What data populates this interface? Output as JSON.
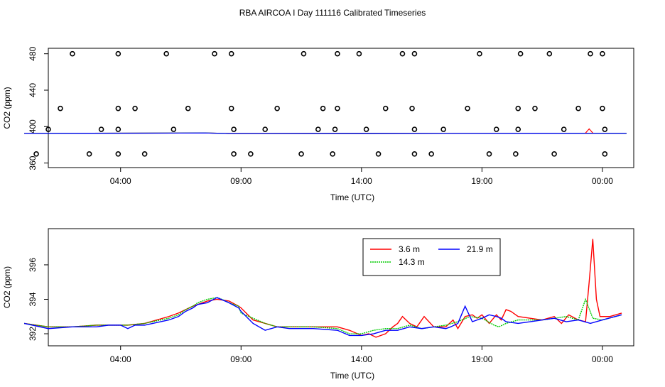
{
  "title": "RBA AIRCOA I  Day 111116  Calibrated Timeseries",
  "chart_data": [
    {
      "type": "scatter",
      "name": "top",
      "xlabel": "Time (UTC)",
      "ylabel": "CO2 (ppm)",
      "xlim": [
        0.0,
        24.3
      ],
      "ylim": [
        355,
        486
      ],
      "xticks": [
        3,
        8,
        13,
        18,
        23
      ],
      "xtick_labels": [
        "04:00",
        "09:00",
        "14:00",
        "19:00",
        "00:00"
      ],
      "yticks": [
        360,
        400,
        440,
        480
      ],
      "ytick_labels": [
        "360",
        "400",
        "440",
        "480"
      ],
      "points": [
        {
          "x": 2.9,
          "y": 480
        },
        {
          "x": 4.9,
          "y": 480
        },
        {
          "x": 7.6,
          "y": 480
        },
        {
          "x": 10.6,
          "y": 480
        },
        {
          "x": 12.9,
          "y": 480
        },
        {
          "x": 14.7,
          "y": 480
        },
        {
          "x": 17.9,
          "y": 480
        },
        {
          "x": 22.5,
          "y": 480
        },
        {
          "x": 1.0,
          "y": 480
        },
        {
          "x": 6.9,
          "y": 480
        },
        {
          "x": 12.0,
          "y": 480
        },
        {
          "x": 15.2,
          "y": 480
        },
        {
          "x": 19.6,
          "y": 480
        },
        {
          "x": 20.8,
          "y": 480
        },
        {
          "x": 23.0,
          "y": 480
        },
        {
          "x": 0.5,
          "y": 420
        },
        {
          "x": 2.9,
          "y": 420
        },
        {
          "x": 3.6,
          "y": 420
        },
        {
          "x": 5.8,
          "y": 420
        },
        {
          "x": 7.6,
          "y": 420
        },
        {
          "x": 9.5,
          "y": 420
        },
        {
          "x": 11.4,
          "y": 420
        },
        {
          "x": 12.0,
          "y": 420
        },
        {
          "x": 14.0,
          "y": 420
        },
        {
          "x": 15.1,
          "y": 420
        },
        {
          "x": 17.4,
          "y": 420
        },
        {
          "x": 19.5,
          "y": 420
        },
        {
          "x": 20.2,
          "y": 420
        },
        {
          "x": 22.0,
          "y": 420
        },
        {
          "x": 23.0,
          "y": 420
        },
        {
          "x": 0.0,
          "y": 397
        },
        {
          "x": 2.2,
          "y": 397
        },
        {
          "x": 2.9,
          "y": 397
        },
        {
          "x": 5.2,
          "y": 397
        },
        {
          "x": 7.7,
          "y": 397
        },
        {
          "x": 9.0,
          "y": 397
        },
        {
          "x": 11.2,
          "y": 397
        },
        {
          "x": 11.9,
          "y": 397
        },
        {
          "x": 13.2,
          "y": 397
        },
        {
          "x": 15.2,
          "y": 397
        },
        {
          "x": 16.4,
          "y": 397
        },
        {
          "x": 18.6,
          "y": 397
        },
        {
          "x": 19.5,
          "y": 397
        },
        {
          "x": 21.4,
          "y": 397
        },
        {
          "x": 23.1,
          "y": 397
        },
        {
          "x": -0.5,
          "y": 370
        },
        {
          "x": 1.7,
          "y": 370
        },
        {
          "x": 2.9,
          "y": 370
        },
        {
          "x": 4.0,
          "y": 370
        },
        {
          "x": 7.7,
          "y": 370
        },
        {
          "x": 8.4,
          "y": 370
        },
        {
          "x": 10.5,
          "y": 370
        },
        {
          "x": 11.8,
          "y": 370
        },
        {
          "x": 13.7,
          "y": 370
        },
        {
          "x": 15.2,
          "y": 370
        },
        {
          "x": 15.9,
          "y": 370
        },
        {
          "x": 18.3,
          "y": 370
        },
        {
          "x": 19.4,
          "y": 370
        },
        {
          "x": 21.0,
          "y": 370
        },
        {
          "x": 23.1,
          "y": 370
        }
      ],
      "series": [
        {
          "name": "3.6 m",
          "color": "#ff0000"
        },
        {
          "name": "14.3 m",
          "color": "#00cc00"
        },
        {
          "name": "21.9 m",
          "color": "#0000ff"
        }
      ]
    },
    {
      "type": "line",
      "name": "bottom",
      "xlabel": "Time (UTC)",
      "ylabel": "CO2 (ppm)",
      "xlim": [
        0.0,
        24.3
      ],
      "ylim": [
        391.3,
        398.1
      ],
      "xticks": [
        3,
        8,
        13,
        18,
        23
      ],
      "xtick_labels": [
        "04:00",
        "09:00",
        "14:00",
        "19:00",
        "00:00"
      ],
      "yticks": [
        392,
        394,
        396
      ],
      "ytick_labels": [
        "392",
        "394",
        "396"
      ],
      "legend": {
        "position": "top-center"
      },
      "series": [
        {
          "name": "3.6 m",
          "color": "#ff0000",
          "x": [
            -1.0,
            0.0,
            1.0,
            2.0,
            3.0,
            3.3,
            4.0,
            5.0,
            5.4,
            5.7,
            6.0,
            6.2,
            6.6,
            7.0,
            7.5,
            7.9,
            8.0,
            8.5,
            9.0,
            9.5,
            10.0,
            11.0,
            12.0,
            12.5,
            13.0,
            13.3,
            13.6,
            14.0,
            14.3,
            14.5,
            14.7,
            15.0,
            15.3,
            15.6,
            16.0,
            16.5,
            16.8,
            17.0,
            17.3,
            17.6,
            17.8,
            18.0,
            18.3,
            18.6,
            18.8,
            19.0,
            19.2,
            19.5,
            20.0,
            20.5,
            21.0,
            21.3,
            21.6,
            22.0,
            22.3,
            22.45,
            22.6,
            22.75,
            22.9,
            23.3,
            23.8
          ],
          "y": [
            392.6,
            392.4,
            392.4,
            392.5,
            392.5,
            392.5,
            392.6,
            393.0,
            393.2,
            393.4,
            393.6,
            393.7,
            393.9,
            394.0,
            393.9,
            393.6,
            393.5,
            392.8,
            392.6,
            392.4,
            392.4,
            392.4,
            392.4,
            392.2,
            391.9,
            392.0,
            391.8,
            392.0,
            392.4,
            392.6,
            393.0,
            392.6,
            392.4,
            393.0,
            392.4,
            392.4,
            392.8,
            392.3,
            393.0,
            393.1,
            392.9,
            393.1,
            392.6,
            393.1,
            392.8,
            393.4,
            393.3,
            393.0,
            392.9,
            392.8,
            393.0,
            392.6,
            393.1,
            392.8,
            392.7,
            395.0,
            397.5,
            394.0,
            393.0,
            393.0,
            393.2
          ]
        },
        {
          "name": "14.3 m",
          "color": "#00cc00",
          "x": [
            -1.0,
            0.0,
            1.0,
            2.0,
            3.0,
            3.3,
            4.0,
            5.0,
            5.4,
            5.7,
            6.0,
            6.2,
            6.6,
            7.0,
            7.2,
            7.5,
            7.9,
            8.0,
            8.5,
            9.0,
            9.5,
            10.0,
            11.0,
            12.0,
            12.5,
            13.0,
            13.5,
            14.0,
            14.5,
            15.0,
            15.5,
            16.0,
            16.5,
            17.0,
            17.5,
            18.0,
            18.5,
            18.7,
            19.0,
            19.5,
            20.0,
            20.5,
            21.0,
            21.5,
            22.0,
            22.3,
            22.6,
            23.0,
            23.8
          ],
          "y": [
            392.6,
            392.4,
            392.4,
            392.5,
            392.5,
            392.5,
            392.6,
            392.9,
            393.1,
            393.4,
            393.6,
            393.8,
            394.0,
            394.1,
            394.0,
            393.8,
            393.6,
            393.2,
            392.9,
            392.6,
            392.4,
            392.4,
            392.4,
            392.3,
            392.0,
            392.0,
            392.2,
            392.3,
            392.3,
            392.5,
            392.3,
            392.4,
            392.5,
            392.7,
            393.0,
            392.9,
            392.5,
            392.4,
            392.6,
            392.8,
            392.8,
            392.8,
            392.9,
            393.0,
            392.8,
            394.0,
            392.9,
            392.8,
            393.1
          ]
        },
        {
          "name": "21.9 m",
          "color": "#0000ff",
          "x": [
            -1.0,
            0.0,
            1.0,
            2.0,
            2.5,
            3.0,
            3.3,
            3.6,
            4.0,
            5.0,
            5.4,
            5.7,
            6.0,
            6.2,
            6.6,
            7.0,
            7.5,
            7.9,
            8.0,
            8.5,
            9.0,
            9.5,
            10.0,
            11.0,
            12.0,
            12.5,
            13.0,
            13.5,
            14.0,
            14.5,
            15.0,
            15.5,
            16.0,
            16.5,
            16.7,
            17.0,
            17.3,
            17.6,
            17.8,
            18.0,
            18.3,
            18.6,
            18.8,
            19.0,
            19.5,
            20.0,
            20.5,
            21.0,
            21.5,
            22.0,
            22.5,
            23.0,
            23.8
          ],
          "y": [
            392.6,
            392.3,
            392.4,
            392.4,
            392.5,
            392.5,
            392.3,
            392.5,
            392.5,
            392.8,
            393.0,
            393.3,
            393.5,
            393.7,
            393.8,
            394.1,
            393.8,
            393.5,
            393.3,
            392.6,
            392.2,
            392.4,
            392.3,
            392.3,
            392.2,
            391.9,
            391.9,
            392.0,
            392.2,
            392.2,
            392.4,
            392.3,
            392.4,
            392.3,
            392.4,
            392.6,
            393.6,
            392.7,
            392.8,
            392.9,
            393.1,
            393.0,
            392.9,
            392.7,
            392.6,
            392.7,
            392.8,
            392.9,
            392.7,
            392.8,
            392.6,
            392.8,
            393.1
          ]
        }
      ]
    }
  ]
}
